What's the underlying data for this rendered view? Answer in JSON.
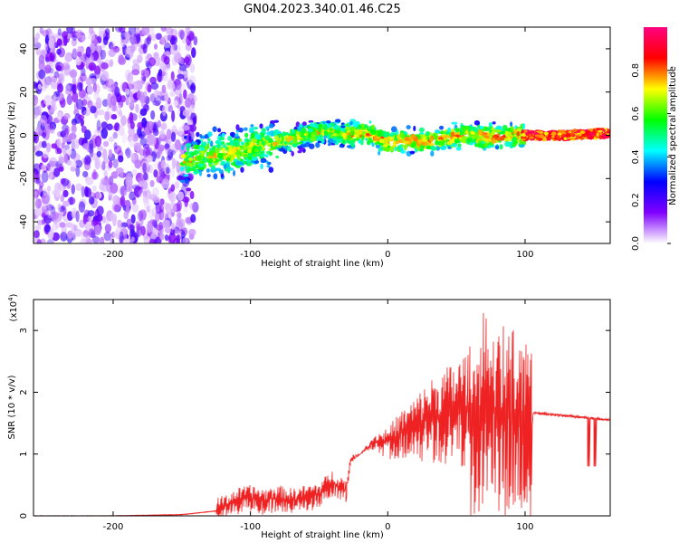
{
  "title": "GN04.2023.340.01.46.C25",
  "chart_data": [
    {
      "type": "heatmap",
      "xlabel": "Height of straight line (km)",
      "ylabel": "Frequency (Hz)",
      "xlim": [
        -258,
        162
      ],
      "ylim": [
        -50,
        50
      ],
      "xticks": [
        -200,
        -100,
        0,
        100
      ],
      "yticks": [
        -40,
        -20,
        0,
        20,
        40
      ],
      "grid": false,
      "colorbar": {
        "label": "Normalized spectral amplitude",
        "range": [
          0,
          1
        ],
        "ticks": [
          "0.0",
          "0.2",
          "0.4",
          "0.6",
          "0.8"
        ],
        "colors": [
          "#ffffff",
          "#8000ff",
          "#0000ff",
          "#00ffff",
          "#00ff00",
          "#ffff00",
          "#ff0000",
          "#ff0080"
        ]
      },
      "signal_track": {
        "x": [
          -150,
          -120,
          -100,
          -80,
          -60,
          -45,
          -30,
          -15,
          0,
          15,
          30,
          45,
          60,
          80,
          100,
          130,
          160
        ],
        "y": [
          -12,
          -9,
          -6,
          -3,
          0,
          2,
          0,
          1,
          -3,
          -2,
          -3,
          -1,
          0,
          -1,
          0,
          0,
          1
        ]
      }
    },
    {
      "type": "line",
      "xlabel": "Height of straight line (km)",
      "ylabel": "SNR (10 * v/v)",
      "y_multiplier": "(x10",
      "y_multiplier_exp": "4",
      "y_multiplier_close": ")",
      "xlim": [
        -258,
        162
      ],
      "ylim": [
        0,
        3.5
      ],
      "xticks": [
        -200,
        -100,
        0,
        100
      ],
      "yticks": [
        0,
        1,
        2,
        3
      ],
      "grid": false,
      "series": [
        {
          "color": "#ee2222",
          "x": [
            -258,
            -200,
            -150,
            -125,
            -110,
            -100,
            -90,
            -80,
            -70,
            -60,
            -50,
            -40,
            -30,
            -27,
            -20,
            -10,
            0,
            10,
            20,
            30,
            40,
            50,
            60,
            70,
            80,
            90,
            100,
            105,
            106,
            120,
            140,
            162
          ],
          "y": [
            0,
            0,
            0.02,
            0.08,
            0.25,
            0.3,
            0.25,
            0.3,
            0.25,
            0.3,
            0.35,
            0.55,
            0.4,
            0.9,
            1.0,
            1.2,
            1.2,
            1.35,
            1.45,
            1.6,
            1.65,
            1.7,
            1.8,
            1.75,
            1.7,
            1.65,
            1.5,
            1.4,
            1.67,
            1.64,
            1.6,
            1.55
          ]
        }
      ]
    }
  ]
}
